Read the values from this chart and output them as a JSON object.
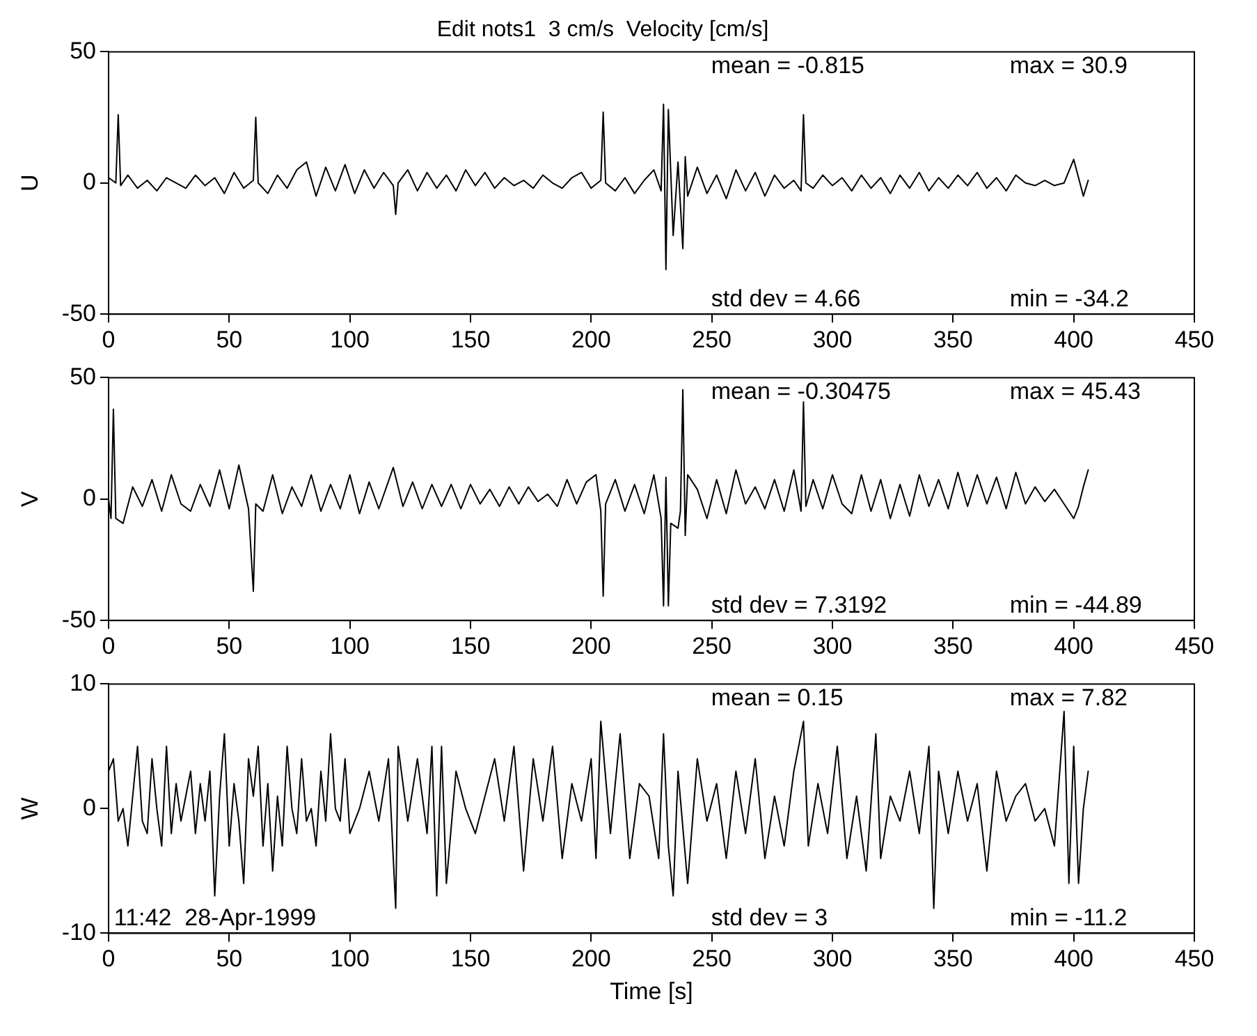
{
  "chart_data": [
    {
      "type": "line",
      "title": "Edit nots1  3 cm/s  Velocity [cm/s]",
      "ylabel": "U",
      "xlim": [
        0,
        450
      ],
      "xticks": [
        0,
        50,
        100,
        150,
        200,
        250,
        300,
        350,
        400,
        450
      ],
      "ylim": [
        -50,
        50
      ],
      "yticks": [
        -50,
        0,
        50
      ],
      "grid": false,
      "legend": false,
      "marker": "none",
      "line_style": "solid",
      "annotations": [
        "mean = -0.815",
        "max = 30.9",
        "std dev = 4.66",
        "min = -34.2"
      ],
      "series": [
        {
          "color": "#000000",
          "x": [
            0,
            3,
            4,
            5,
            8,
            12,
            16,
            20,
            24,
            28,
            32,
            36,
            40,
            44,
            48,
            52,
            56,
            60,
            61,
            62,
            66,
            70,
            74,
            78,
            82,
            86,
            90,
            94,
            98,
            102,
            106,
            110,
            114,
            118,
            119,
            120,
            124,
            128,
            132,
            136,
            140,
            144,
            148,
            152,
            156,
            160,
            164,
            168,
            172,
            176,
            180,
            184,
            188,
            192,
            196,
            200,
            204,
            205,
            206,
            210,
            214,
            218,
            222,
            226,
            229,
            230,
            231,
            232,
            234,
            236,
            238,
            239,
            240,
            244,
            248,
            252,
            256,
            260,
            264,
            268,
            272,
            276,
            280,
            284,
            287,
            288,
            289,
            292,
            296,
            300,
            304,
            308,
            312,
            316,
            320,
            324,
            328,
            332,
            336,
            340,
            344,
            348,
            352,
            356,
            360,
            364,
            368,
            372,
            376,
            380,
            384,
            388,
            392,
            396,
            400,
            402,
            404,
            406
          ],
          "values": [
            2,
            0,
            26,
            -1,
            3,
            -2,
            1,
            -3,
            2,
            0,
            -2,
            3,
            -1,
            2,
            -4,
            4,
            -2,
            1,
            25,
            0,
            -4,
            3,
            -2,
            5,
            8,
            -5,
            6,
            -3,
            7,
            -4,
            5,
            -2,
            4,
            -1,
            -12,
            0,
            5,
            -3,
            4,
            -2,
            3,
            -3,
            5,
            -1,
            4,
            -2,
            2,
            -1,
            1,
            -2,
            3,
            0,
            -2,
            2,
            4,
            -2,
            1,
            27,
            0,
            -3,
            2,
            -4,
            1,
            5,
            -3,
            30,
            -33,
            28,
            -20,
            8,
            -25,
            10,
            -5,
            6,
            -4,
            3,
            -6,
            5,
            -3,
            4,
            -5,
            3,
            -2,
            1,
            -3,
            26,
            0,
            -2,
            3,
            -1,
            2,
            -3,
            3,
            -2,
            2,
            -4,
            3,
            -2,
            4,
            -3,
            2,
            -2,
            3,
            -1,
            4,
            -2,
            2,
            -3,
            3,
            0,
            -1,
            1,
            -1,
            0,
            9,
            2,
            -5,
            1
          ]
        }
      ]
    },
    {
      "type": "line",
      "ylabel": "V",
      "xlim": [
        0,
        450
      ],
      "xticks": [
        0,
        50,
        100,
        150,
        200,
        250,
        300,
        350,
        400,
        450
      ],
      "ylim": [
        -50,
        50
      ],
      "yticks": [
        -50,
        0,
        50
      ],
      "grid": false,
      "legend": false,
      "marker": "none",
      "line_style": "solid",
      "annotations": [
        "mean = -0.30475",
        "max = 45.43",
        "std dev = 7.3192",
        "min = -44.89"
      ],
      "series": [
        {
          "color": "#000000",
          "x": [
            0,
            1,
            2,
            3,
            6,
            10,
            14,
            18,
            22,
            26,
            30,
            34,
            38,
            42,
            46,
            50,
            54,
            58,
            60,
            61,
            64,
            68,
            72,
            76,
            80,
            84,
            88,
            92,
            96,
            100,
            104,
            108,
            112,
            118,
            122,
            126,
            130,
            134,
            138,
            142,
            146,
            150,
            154,
            158,
            162,
            166,
            170,
            174,
            178,
            182,
            186,
            190,
            194,
            198,
            202,
            204,
            205,
            206,
            210,
            214,
            218,
            222,
            226,
            229,
            230,
            231,
            232,
            233,
            236,
            237,
            238,
            239,
            240,
            244,
            248,
            252,
            256,
            260,
            264,
            268,
            272,
            276,
            280,
            284,
            287,
            288,
            289,
            292,
            296,
            300,
            304,
            308,
            312,
            316,
            320,
            324,
            328,
            332,
            336,
            340,
            344,
            348,
            352,
            356,
            360,
            364,
            368,
            372,
            376,
            380,
            384,
            388,
            392,
            396,
            400,
            402,
            404,
            406
          ],
          "values": [
            0,
            -8,
            37,
            -8,
            -10,
            5,
            -3,
            8,
            -5,
            10,
            -2,
            -5,
            6,
            -3,
            12,
            -4,
            14,
            -4,
            -38,
            -2,
            -5,
            10,
            -6,
            5,
            -3,
            10,
            -5,
            6,
            -4,
            10,
            -6,
            7,
            -4,
            13,
            -3,
            7,
            -4,
            6,
            -3,
            6,
            -4,
            6,
            -2,
            4,
            -3,
            5,
            -2,
            5,
            -1,
            2,
            -3,
            8,
            -2,
            7,
            10,
            -5,
            -40,
            -2,
            8,
            -5,
            6,
            -6,
            10,
            -8,
            -44,
            9,
            -44,
            -10,
            -12,
            -5,
            45,
            -15,
            10,
            4,
            -8,
            8,
            -6,
            12,
            -2,
            5,
            -4,
            8,
            -5,
            12,
            -5,
            40,
            -3,
            8,
            -4,
            10,
            -2,
            -6,
            10,
            -5,
            8,
            -8,
            6,
            -7,
            10,
            -3,
            8,
            -4,
            11,
            -3,
            10,
            -2,
            9,
            -4,
            11,
            -2,
            5,
            -1,
            4,
            -2,
            -8,
            -3,
            5,
            12
          ]
        }
      ]
    },
    {
      "type": "line",
      "xlabel": "Time [s]",
      "ylabel": "W",
      "xlim": [
        0,
        450
      ],
      "xticks": [
        0,
        50,
        100,
        150,
        200,
        250,
        300,
        350,
        400,
        450
      ],
      "ylim": [
        -10,
        10
      ],
      "yticks": [
        -10,
        0,
        10
      ],
      "grid": false,
      "legend": false,
      "marker": "none",
      "line_style": "solid",
      "annotations": [
        "mean = 0.15",
        "max = 7.82",
        "std dev = 3",
        "min = -11.2",
        "11:42  28-Apr-1999"
      ],
      "series": [
        {
          "color": "#000000",
          "x": [
            0,
            2,
            4,
            6,
            8,
            10,
            12,
            14,
            16,
            18,
            20,
            22,
            24,
            26,
            28,
            30,
            32,
            34,
            36,
            38,
            40,
            42,
            44,
            46,
            48,
            50,
            52,
            54,
            56,
            58,
            60,
            62,
            64,
            66,
            68,
            70,
            72,
            74,
            76,
            78,
            80,
            82,
            84,
            86,
            88,
            90,
            92,
            94,
            96,
            98,
            100,
            104,
            108,
            112,
            116,
            119,
            120,
            124,
            128,
            132,
            134,
            136,
            138,
            140,
            144,
            148,
            152,
            156,
            160,
            164,
            168,
            172,
            176,
            180,
            184,
            188,
            192,
            196,
            200,
            202,
            204,
            208,
            212,
            216,
            220,
            224,
            228,
            230,
            232,
            234,
            236,
            240,
            244,
            248,
            252,
            256,
            260,
            264,
            268,
            272,
            276,
            280,
            284,
            288,
            290,
            294,
            298,
            302,
            306,
            310,
            314,
            318,
            320,
            324,
            328,
            332,
            336,
            340,
            342,
            344,
            348,
            352,
            356,
            360,
            364,
            368,
            372,
            376,
            380,
            384,
            388,
            392,
            396,
            398,
            400,
            402,
            404,
            406
          ],
          "values": [
            3,
            4,
            -1,
            0,
            -3,
            1,
            5,
            -1,
            -2,
            4,
            0,
            -3,
            5,
            -2,
            2,
            -1,
            1,
            3,
            -2,
            2,
            -1,
            3,
            -7,
            1,
            6,
            -3,
            2,
            -1,
            -6,
            4,
            1,
            5,
            -3,
            2,
            -5,
            1,
            -3,
            5,
            0,
            -2,
            4,
            -1,
            0,
            -3,
            3,
            -1,
            6,
            0,
            -1,
            4,
            -2,
            0,
            3,
            -1,
            4,
            -8,
            5,
            -1,
            4,
            -2,
            5,
            -7,
            5,
            -6,
            3,
            0,
            -2,
            1,
            4,
            -1,
            5,
            -5,
            4,
            -1,
            5,
            -4,
            2,
            -1,
            4,
            -4,
            7,
            -2,
            6,
            -4,
            2,
            1,
            -4,
            6,
            -3,
            -7,
            3,
            -6,
            4,
            -1,
            2,
            -4,
            3,
            -2,
            4,
            -4,
            1,
            -3,
            3,
            7,
            -3,
            2,
            -2,
            5,
            -4,
            1,
            -5,
            6,
            -4,
            1,
            -1,
            3,
            -2,
            5,
            -8,
            3,
            -2,
            3,
            -1,
            2,
            -5,
            3,
            -1,
            1,
            2,
            -1,
            0,
            -3,
            7.8,
            -6,
            5,
            -6,
            0,
            3
          ]
        }
      ]
    }
  ]
}
